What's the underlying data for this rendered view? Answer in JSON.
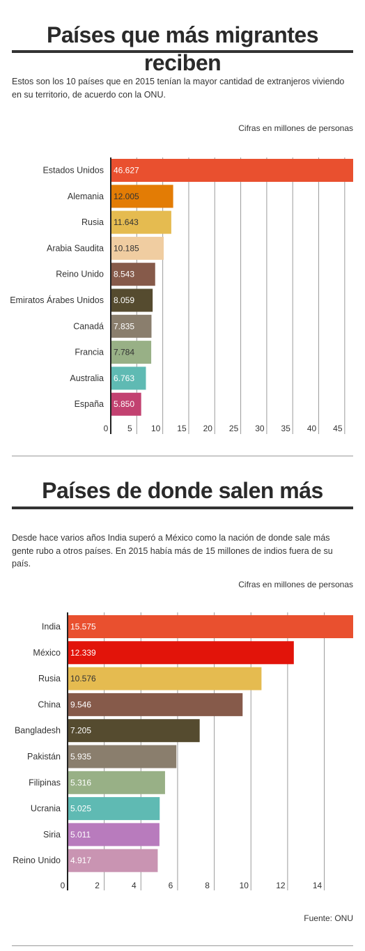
{
  "section1": {
    "title": "Países que más migrantes reciben",
    "description": "Estos son los 10 países que en 2015 tenían la mayor cantidad de extranjeros viviendo en su territorio, de acuerdo con la ONU.",
    "unit_note": "Cifras en millones de personas"
  },
  "section2": {
    "title": "Países de donde salen más",
    "description": "Desde hace varios años India superó a México como la nación de donde sale más gente rubo a otros países. En 2015 había más de 15 millones de indios fuera de su país.",
    "unit_note": "Cifras en millones de personas"
  },
  "source": "Fuente: ONU",
  "chart_data": [
    {
      "type": "bar",
      "orientation": "horizontal",
      "title": "Países que más migrantes reciben",
      "categories": [
        "Estados Unidos",
        "Alemania",
        "Rusia",
        "Arabia Saudita",
        "Reino Unido",
        "Emiratos Árabes Unidos",
        "Canadá",
        "Francia",
        "Australia",
        "España"
      ],
      "values": [
        46.627,
        12.005,
        11.643,
        10.185,
        8.543,
        8.059,
        7.835,
        7.784,
        6.763,
        5.85
      ],
      "value_labels": [
        "46.627",
        "12.005",
        "11.643",
        "10.185",
        "8.543",
        "8.059",
        "7.835",
        "7.784",
        "6.763",
        "5.850"
      ],
      "colors": [
        "#e9502f",
        "#e37c05",
        "#e5bb50",
        "#f0cda1",
        "#865a4a",
        "#554b2f",
        "#8a7e6d",
        "#98b086",
        "#5fbab3",
        "#c24170"
      ],
      "label_colors": [
        "#ffffff",
        "#333333",
        "#333333",
        "#333333",
        "#ffffff",
        "#ffffff",
        "#ffffff",
        "#333333",
        "#ffffff",
        "#ffffff"
      ],
      "ticks": [
        0,
        5,
        10,
        15,
        20,
        25,
        30,
        35,
        40,
        45
      ],
      "xlim": [
        0,
        46.627
      ],
      "grid": true
    },
    {
      "type": "bar",
      "orientation": "horizontal",
      "title": "Países de donde salen más",
      "categories": [
        "India",
        "México",
        "Rusia",
        "China",
        "Bangladesh",
        "Pakistán",
        "Filipinas",
        "Ucrania",
        "Siria",
        "Reino Unido"
      ],
      "values": [
        15.575,
        12.339,
        10.576,
        9.546,
        7.205,
        5.935,
        5.316,
        5.025,
        5.011,
        4.917
      ],
      "value_labels": [
        "15.575",
        "12.339",
        "10.576",
        "9.546",
        "7.205",
        "5.935",
        "5.316",
        "5.025",
        "5.011",
        "4.917"
      ],
      "colors": [
        "#e9502f",
        "#e2140a",
        "#e5bb50",
        "#865a4a",
        "#554b2f",
        "#8a7e6d",
        "#98b086",
        "#5fbab3",
        "#b87bbd",
        "#c994b2"
      ],
      "label_colors": [
        "#ffffff",
        "#ffffff",
        "#333333",
        "#ffffff",
        "#ffffff",
        "#ffffff",
        "#ffffff",
        "#ffffff",
        "#ffffff",
        "#ffffff"
      ],
      "ticks": [
        0,
        2,
        4,
        6,
        8,
        10,
        12,
        14
      ],
      "xlim": [
        0,
        15.575
      ],
      "grid": true
    }
  ]
}
